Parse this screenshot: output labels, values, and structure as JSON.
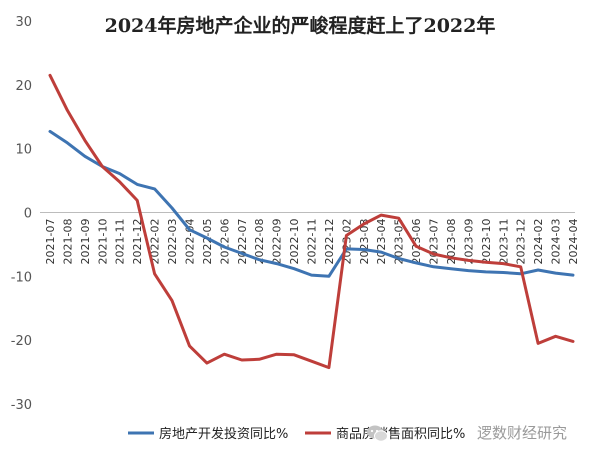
{
  "chart_data": {
    "type": "line",
    "title": "2024年房地产企业的严峻程度赶上了2022年",
    "xlabel": "",
    "ylabel": "",
    "ylim": [
      -30,
      30
    ],
    "yticks": [
      30,
      20,
      10,
      0,
      -10,
      -20,
      -30
    ],
    "grid": false,
    "legend": "bottom",
    "x": [
      "2021-07",
      "2021-08",
      "2021-09",
      "2021-10",
      "2021-11",
      "2021-12",
      "2022-02",
      "2022-03",
      "2022-04",
      "2022-05",
      "2022-06",
      "2022-07",
      "2022-08",
      "2022-09",
      "2022-10",
      "2022-11",
      "2022-12",
      "2023-02",
      "2023-03",
      "2023-04",
      "2023-05",
      "2023-06",
      "2023-07",
      "2023-08",
      "2023-09",
      "2023-10",
      "2023-11",
      "2023-12",
      "2024-02",
      "2024-03",
      "2024-04"
    ],
    "series": [
      {
        "name": "房地产开发投资同比%",
        "color": "#3e74b2",
        "values": [
          12.7,
          10.9,
          8.8,
          7.2,
          6.1,
          4.4,
          3.7,
          0.7,
          -2.7,
          -4.0,
          -5.4,
          -6.4,
          -7.4,
          -8.0,
          -8.8,
          -9.8,
          -10.0,
          -5.7,
          -5.8,
          -6.2,
          -7.2,
          -7.9,
          -8.5,
          -8.8,
          -9.1,
          -9.3,
          -9.4,
          -9.6,
          -9.0,
          -9.5,
          -9.8
        ]
      },
      {
        "name": "商品房销售面积同比%",
        "color": "#be3e3a",
        "values": [
          21.5,
          16.0,
          11.3,
          7.2,
          4.8,
          1.9,
          -9.6,
          -13.8,
          -20.9,
          -23.6,
          -22.2,
          -23.1,
          -23.0,
          -22.2,
          -22.3,
          -23.3,
          -24.3,
          -3.6,
          -1.8,
          -0.4,
          -0.9,
          -5.3,
          -6.5,
          -7.1,
          -7.5,
          -7.8,
          -8.0,
          -8.5,
          -20.5,
          -19.4,
          -20.2
        ]
      }
    ]
  },
  "watermark": {
    "icon": "wechat-logo-icon",
    "text": "逻数财经研究"
  }
}
